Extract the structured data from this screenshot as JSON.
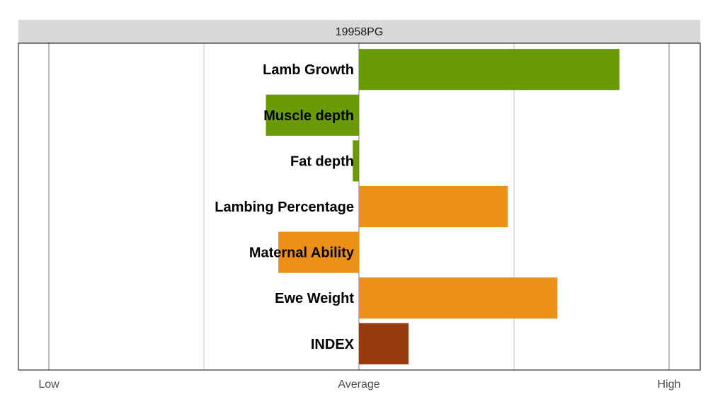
{
  "chart_data": {
    "type": "bar",
    "orientation": "horizontal",
    "title": "19958PG",
    "categories": [
      "Lamb Growth",
      "Muscle depth",
      "Fat depth",
      "Lambing Percentage",
      "Maternal Ability",
      "Ewe Weight",
      "INDEX"
    ],
    "values": [
      0.84,
      -0.3,
      -0.02,
      0.48,
      -0.26,
      0.64,
      0.16
    ],
    "bar_colors": [
      "#6a9a06",
      "#6a9a06",
      "#6a9a06",
      "#eb9018",
      "#eb9018",
      "#eb9018",
      "#983a10"
    ],
    "xlim": [
      -1,
      1
    ],
    "xticks": [
      {
        "value": -1,
        "label": "Low"
      },
      {
        "value": 0,
        "label": "Average"
      },
      {
        "value": 1,
        "label": "High"
      }
    ],
    "grid": true,
    "legend": "none",
    "colors": {
      "strip_bg": "#d9d9d9",
      "panel_border": "#333333",
      "major_grid": "#999999",
      "minor_grid": "#bdbdbd"
    }
  }
}
